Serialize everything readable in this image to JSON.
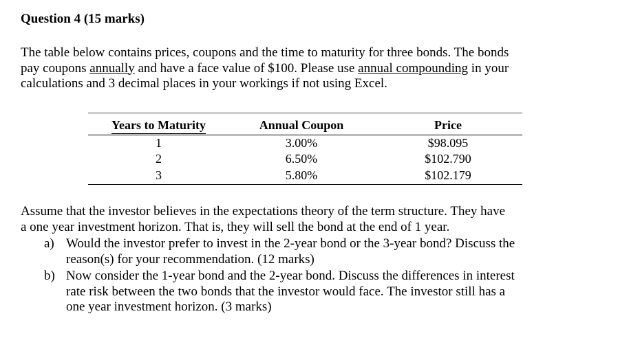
{
  "question": {
    "heading": "Question 4 (15 marks)"
  },
  "intro": {
    "line1": "The table below contains prices, coupons and the time to maturity for three bonds. The bonds",
    "line2_a": "pay coupons ",
    "line2_u1": "annually",
    "line2_b": " and have a face value of $100. Please use ",
    "line2_u2": "annual compounding",
    "line2_c": " in your",
    "line3": "calculations and 3 decimal places in your workings if not using Excel."
  },
  "table": {
    "headers": [
      "Years to Maturity",
      "Annual Coupon",
      "Price"
    ],
    "rows": [
      [
        "1",
        "3.00%",
        "$98.095"
      ],
      [
        "2",
        "6.50%",
        "$102.790"
      ],
      [
        "3",
        "5.80%",
        "$102.179"
      ]
    ]
  },
  "assumption": {
    "line1": "Assume that the investor believes in the expectations theory of the term structure. They have",
    "line2": "a one year investment horizon. That is, they will sell the bond at the end of 1 year."
  },
  "parts": [
    {
      "label": "a)",
      "line1": "Would the investor prefer to invest in the 2-year bond or the 3-year bond? Discuss the",
      "line2": "reason(s) for your recommendation. (12 marks)"
    },
    {
      "label": "b)",
      "line1": "Now consider the 1-year bond and the 2-year bond. Discuss the differences in interest",
      "line2": "rate risk between the two bonds that the investor would face. The investor still has a",
      "line3": "one year investment horizon. (3 marks)"
    }
  ]
}
